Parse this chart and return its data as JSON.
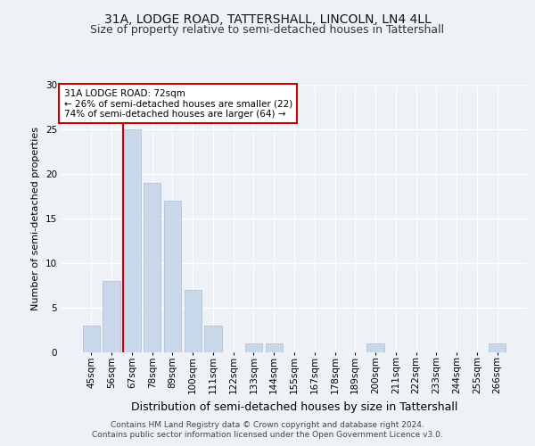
{
  "title1": "31A, LODGE ROAD, TATTERSHALL, LINCOLN, LN4 4LL",
  "title2": "Size of property relative to semi-detached houses in Tattershall",
  "xlabel": "Distribution of semi-detached houses by size in Tattershall",
  "ylabel": "Number of semi-detached properties",
  "footer1": "Contains HM Land Registry data © Crown copyright and database right 2024.",
  "footer2": "Contains public sector information licensed under the Open Government Licence v3.0.",
  "categories": [
    "45sqm",
    "56sqm",
    "67sqm",
    "78sqm",
    "89sqm",
    "100sqm",
    "111sqm",
    "122sqm",
    "133sqm",
    "144sqm",
    "155sqm",
    "167sqm",
    "178sqm",
    "189sqm",
    "200sqm",
    "211sqm",
    "222sqm",
    "233sqm",
    "244sqm",
    "255sqm",
    "266sqm"
  ],
  "values": [
    3,
    8,
    25,
    19,
    17,
    7,
    3,
    0,
    1,
    1,
    0,
    0,
    0,
    0,
    1,
    0,
    0,
    0,
    0,
    0,
    1
  ],
  "bar_color": "#c8d8ea",
  "bar_edge_color": "#a8c0d4",
  "vline_x": 1.575,
  "vline_color": "#cc0000",
  "annotation_title": "31A LODGE ROAD: 72sqm",
  "annotation_line1": "← 26% of semi-detached houses are smaller (22)",
  "annotation_line2": "74% of semi-detached houses are larger (64) →",
  "annotation_box_color": "#ffffff",
  "annotation_box_edge": "#cc0000",
  "ylim": [
    0,
    30
  ],
  "yticks": [
    0,
    5,
    10,
    15,
    20,
    25,
    30
  ],
  "bg_color": "#eef2f7",
  "grid_color": "#ffffff",
  "title1_fontsize": 10,
  "title2_fontsize": 9,
  "xlabel_fontsize": 9,
  "ylabel_fontsize": 8,
  "tick_fontsize": 7.5,
  "annotation_fontsize": 7.5,
  "footer_fontsize": 6.5
}
